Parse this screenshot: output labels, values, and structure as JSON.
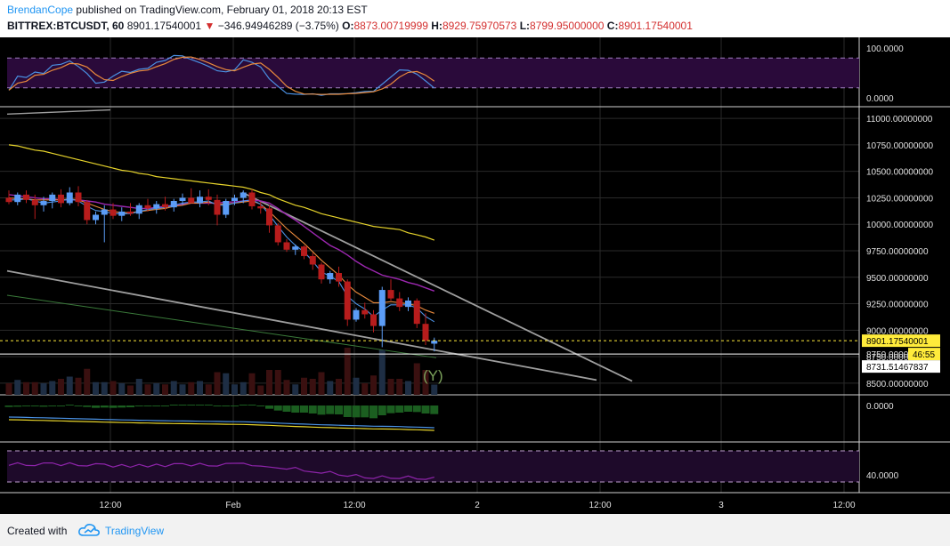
{
  "header": {
    "author": "BrendanCope",
    "published_text": "published on TradingView.com, February 01, 2018 20:13 EST",
    "symbol": "BITTREX:BTCUSDT, 60",
    "last": "8901.17540001",
    "arrow": "▼",
    "change": "−346.94946289 (−3.75%)",
    "o_label": "O:",
    "o_value": "8873.00719999",
    "h_label": "H:",
    "h_value": "8929.75970573",
    "l_label": "L:",
    "l_value": "8799.95000000",
    "c_label": "C:",
    "c_value": "8901.17540001"
  },
  "footer": {
    "created_with": "Created with",
    "brand": "TradingView"
  },
  "colors": {
    "up": "#5b9cf6",
    "down": "#b71c1c",
    "ma_yellow": "#e6d32b",
    "ma_purple": "#9c27b0",
    "ma_orange": "#e8893c",
    "ma_blue": "#4a90e2",
    "trendline": "#9e9e9e",
    "last_price": "#ffeb3b"
  },
  "chart_data": {
    "type": "candlestick",
    "interval": "60",
    "price_axis_ticks": [
      "11000.00000000",
      "10750.00000000",
      "10500.00000000",
      "10250.00000000",
      "10000.00000000",
      "9750.00000000",
      "9500.00000000",
      "9250.00000000",
      "9000.00000000",
      "8750.00000000",
      "8500.00000000"
    ],
    "price_ylim": [
      8390,
      11110
    ],
    "last_price_label": "8901.17540001",
    "low_line_label": "8750.00000000",
    "countdown_label": "46:55",
    "mark_label": "8731.51467837",
    "stoch_ticks": [
      "100.0000",
      "0.0000"
    ],
    "macd_ticks": [
      "0.0000"
    ],
    "rsi_ticks": [
      "40.0000"
    ],
    "time_ticks": [
      "12:00",
      "Feb",
      "12:00",
      "2",
      "12:00",
      "3",
      "12:00"
    ],
    "annotation": "(Y)",
    "candles": [
      {
        "o": 10250,
        "h": 10320,
        "l": 10190,
        "c": 10210
      },
      {
        "o": 10210,
        "h": 10300,
        "l": 10180,
        "c": 10280
      },
      {
        "o": 10280,
        "h": 10320,
        "l": 10200,
        "c": 10230
      },
      {
        "o": 10230,
        "h": 10280,
        "l": 10050,
        "c": 10180
      },
      {
        "o": 10180,
        "h": 10260,
        "l": 10120,
        "c": 10220
      },
      {
        "o": 10220,
        "h": 10300,
        "l": 10150,
        "c": 10280
      },
      {
        "o": 10280,
        "h": 10330,
        "l": 10160,
        "c": 10200
      },
      {
        "o": 10200,
        "h": 10350,
        "l": 10180,
        "c": 10300
      },
      {
        "o": 10300,
        "h": 10360,
        "l": 10170,
        "c": 10210
      },
      {
        "o": 10210,
        "h": 10230,
        "l": 10000,
        "c": 10040
      },
      {
        "o": 10040,
        "h": 10120,
        "l": 10000,
        "c": 10090
      },
      {
        "o": 10090,
        "h": 10180,
        "l": 9830,
        "c": 10140
      },
      {
        "o": 10140,
        "h": 10200,
        "l": 10050,
        "c": 10080
      },
      {
        "o": 10080,
        "h": 10160,
        "l": 10030,
        "c": 10120
      },
      {
        "o": 10120,
        "h": 10200,
        "l": 10080,
        "c": 10100
      },
      {
        "o": 10100,
        "h": 10200,
        "l": 10050,
        "c": 10180
      },
      {
        "o": 10180,
        "h": 10240,
        "l": 10120,
        "c": 10150
      },
      {
        "o": 10150,
        "h": 10220,
        "l": 10100,
        "c": 10190
      },
      {
        "o": 10190,
        "h": 10260,
        "l": 10130,
        "c": 10160
      },
      {
        "o": 10160,
        "h": 10240,
        "l": 10120,
        "c": 10220
      },
      {
        "o": 10220,
        "h": 10290,
        "l": 10180,
        "c": 10250
      },
      {
        "o": 10250,
        "h": 10340,
        "l": 10200,
        "c": 10200
      },
      {
        "o": 10200,
        "h": 10320,
        "l": 10160,
        "c": 10260
      },
      {
        "o": 10260,
        "h": 10330,
        "l": 10180,
        "c": 10230
      },
      {
        "o": 10230,
        "h": 10280,
        "l": 9990,
        "c": 10090
      },
      {
        "o": 10090,
        "h": 10240,
        "l": 10060,
        "c": 10220
      },
      {
        "o": 10220,
        "h": 10280,
        "l": 10180,
        "c": 10250
      },
      {
        "o": 10250,
        "h": 10320,
        "l": 10200,
        "c": 10300
      },
      {
        "o": 10300,
        "h": 10330,
        "l": 10140,
        "c": 10170
      },
      {
        "o": 10170,
        "h": 10210,
        "l": 10100,
        "c": 10150
      },
      {
        "o": 10150,
        "h": 10180,
        "l": 9920,
        "c": 9990
      },
      {
        "o": 9990,
        "h": 10010,
        "l": 9800,
        "c": 9830
      },
      {
        "o": 9830,
        "h": 9860,
        "l": 9740,
        "c": 9760
      },
      {
        "o": 9760,
        "h": 9810,
        "l": 9710,
        "c": 9790
      },
      {
        "o": 9790,
        "h": 9800,
        "l": 9670,
        "c": 9700
      },
      {
        "o": 9700,
        "h": 9730,
        "l": 9570,
        "c": 9620
      },
      {
        "o": 9620,
        "h": 9640,
        "l": 9440,
        "c": 9480
      },
      {
        "o": 9480,
        "h": 9560,
        "l": 9440,
        "c": 9540
      },
      {
        "o": 9540,
        "h": 9600,
        "l": 9410,
        "c": 9460
      },
      {
        "o": 9460,
        "h": 9480,
        "l": 9040,
        "c": 9100
      },
      {
        "o": 9100,
        "h": 9210,
        "l": 9080,
        "c": 9190
      },
      {
        "o": 9190,
        "h": 9260,
        "l": 9110,
        "c": 9150
      },
      {
        "o": 9150,
        "h": 9190,
        "l": 8980,
        "c": 9040
      },
      {
        "o": 9040,
        "h": 9410,
        "l": 8840,
        "c": 9380
      },
      {
        "o": 9380,
        "h": 9480,
        "l": 9280,
        "c": 9300
      },
      {
        "o": 9300,
        "h": 9360,
        "l": 9180,
        "c": 9220
      },
      {
        "o": 9220,
        "h": 9310,
        "l": 9180,
        "c": 9280
      },
      {
        "o": 9280,
        "h": 9300,
        "l": 9020,
        "c": 9060
      },
      {
        "o": 9060,
        "h": 9160,
        "l": 8860,
        "c": 8900
      },
      {
        "o": 8873,
        "h": 8930,
        "l": 8800,
        "c": 8901
      }
    ],
    "ma_yellow": [
      10750,
      10740,
      10720,
      10700,
      10690,
      10670,
      10650,
      10630,
      10610,
      10590,
      10570,
      10550,
      10530,
      10510,
      10500,
      10480,
      10470,
      10450,
      10440,
      10430,
      10420,
      10410,
      10400,
      10390,
      10380,
      10370,
      10360,
      10350,
      10330,
      10300,
      10280,
      10240,
      10210,
      10180,
      10160,
      10130,
      10100,
      10080,
      10060,
      10040,
      10020,
      10000,
      9980,
      9970,
      9960,
      9950,
      9920,
      9900,
      9880,
      9850
    ],
    "ma_purple": [
      10280,
      10270,
      10260,
      10250,
      10240,
      10240,
      10230,
      10230,
      10230,
      10220,
      10210,
      10190,
      10180,
      10170,
      10160,
      10150,
      10150,
      10160,
      10170,
      10180,
      10190,
      10200,
      10200,
      10200,
      10200,
      10210,
      10210,
      10220,
      10230,
      10220,
      10200,
      10150,
      10090,
      10040,
      9980,
      9920,
      9860,
      9800,
      9760,
      9710,
      9650,
      9600,
      9560,
      9520,
      9500,
      9480,
      9450,
      9430,
      9400,
      9370
    ],
    "ma_orange": [
      10250,
      10240,
      10240,
      10230,
      10230,
      10230,
      10230,
      10240,
      10230,
      10200,
      10170,
      10140,
      10120,
      10110,
      10110,
      10120,
      10130,
      10140,
      10150,
      10170,
      10180,
      10200,
      10200,
      10210,
      10190,
      10190,
      10200,
      10210,
      10220,
      10190,
      10120,
      10040,
      9960,
      9890,
      9820,
      9740,
      9660,
      9590,
      9520,
      9430,
      9360,
      9310,
      9260,
      9260,
      9270,
      9260,
      9250,
      9230,
      9190,
      9160
    ],
    "ma_blue": [
      10230,
      10230,
      10240,
      10220,
      10200,
      10210,
      10220,
      10240,
      10220,
      10170,
      10130,
      10120,
      10100,
      10100,
      10100,
      10120,
      10140,
      10150,
      10160,
      10180,
      10200,
      10210,
      10210,
      10220,
      10180,
      10180,
      10200,
      10220,
      10230,
      10190,
      10090,
      9980,
      9880,
      9800,
      9740,
      9650,
      9550,
      9510,
      9460,
      9320,
      9250,
      9200,
      9130,
      9190,
      9240,
      9240,
      9240,
      9210,
      9130,
      9080
    ]
  }
}
